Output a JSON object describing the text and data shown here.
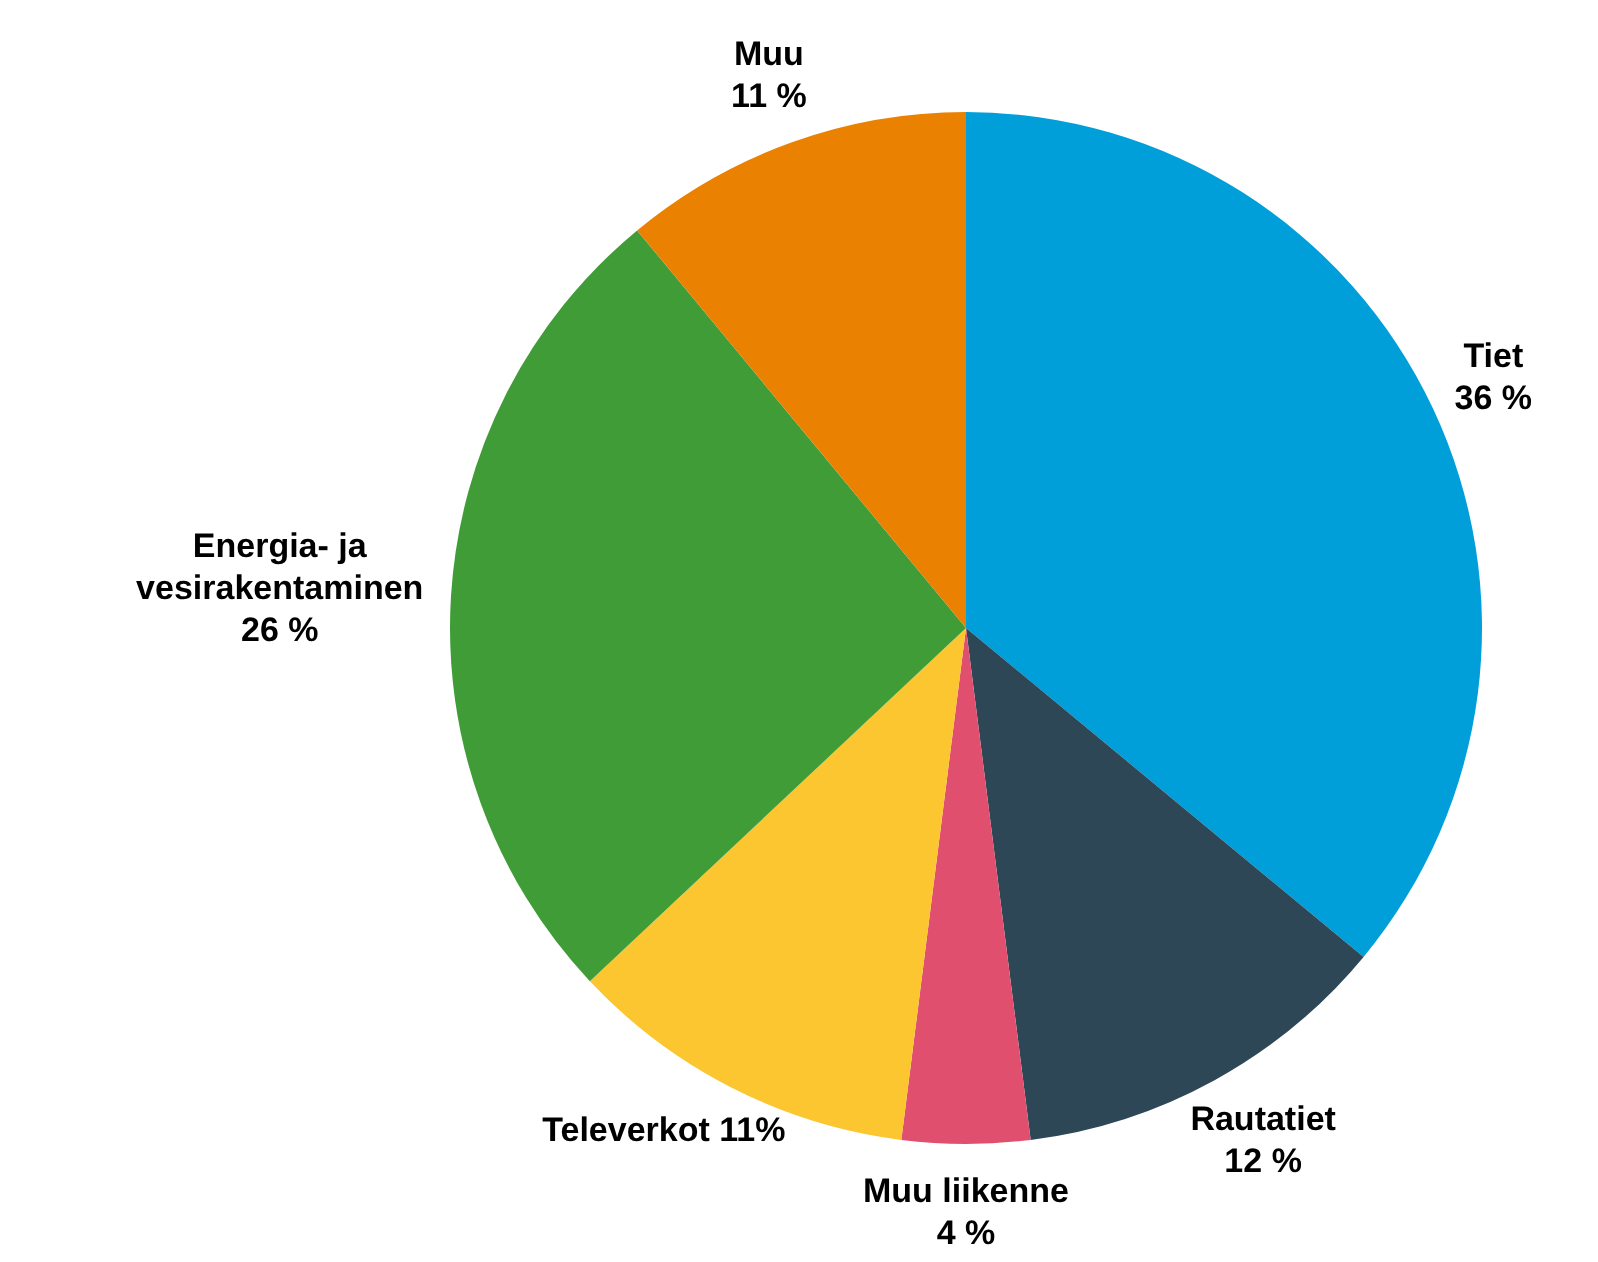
{
  "chart_data": {
    "type": "pie",
    "categories": [
      "Tiet",
      "Rautatiet",
      "Muu liikenne",
      "Televerkot",
      "Energia- ja vesirakentaminen",
      "Muu"
    ],
    "values": [
      36,
      12,
      4,
      11,
      26,
      11
    ],
    "value_labels": [
      "36 %",
      "12 %",
      "4 %",
      "11%",
      "26 %",
      "11 %"
    ],
    "colors": [
      "#009fda",
      "#2d4756",
      "#e0506e",
      "#fcc630",
      "#409c37",
      "#eb8100"
    ]
  }
}
